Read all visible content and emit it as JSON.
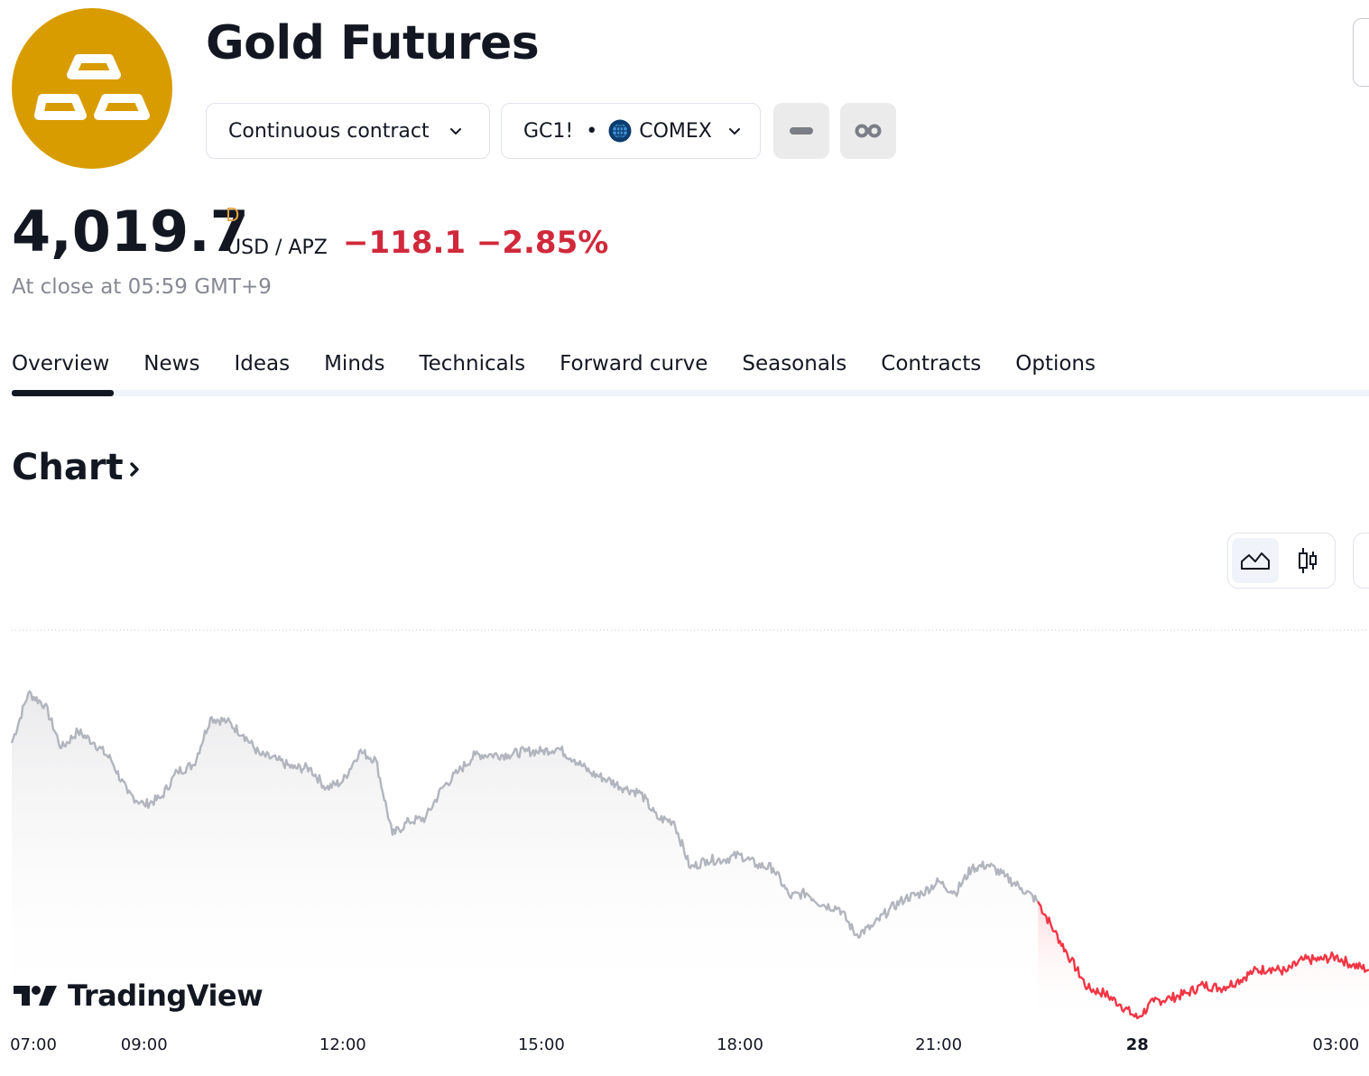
{
  "header": {
    "title": "Gold Futures",
    "logo_icon": "gold-bars-icon",
    "contract_label": "Continuous contract",
    "symbol": "GC1!",
    "separator": "•",
    "exchange": "COMEX",
    "exchange_icon": "globe-icon"
  },
  "quote": {
    "price": "4,019.7",
    "badge": "D",
    "unit": "USD / APZ",
    "change": "−118.1 −2.85%",
    "close_time": "At close at 05:59 GMT+9"
  },
  "tabs": [
    "Overview",
    "News",
    "Ideas",
    "Minds",
    "Technicals",
    "Forward curve",
    "Seasonals",
    "Contracts",
    "Options"
  ],
  "active_tab": "Overview",
  "section": {
    "title": "Chart"
  },
  "chart_controls": {
    "selected": "area",
    "options": [
      "area",
      "candles"
    ]
  },
  "branding": {
    "watermark": "TradingView"
  },
  "colors": {
    "accent_gold": "#d89c00",
    "negative": "#d0293b",
    "line_grey": "#b2b5be",
    "line_red": "#f23645"
  },
  "chart_data": {
    "type": "area",
    "x_tick_labels": [
      "07:00",
      "09:00",
      "12:00",
      "15:00",
      "18:00",
      "21:00",
      "28",
      "03:00"
    ],
    "x_ticks_hours": [
      7,
      9,
      12,
      15,
      18,
      21,
      24,
      27
    ],
    "x_range_hours": [
      7,
      27.5
    ],
    "session_break_hour": 22.5,
    "y_range": [
      3990,
      4200
    ],
    "series": [
      {
        "hours": [
          7.0,
          7.25,
          7.5,
          7.75,
          8.0,
          8.25,
          8.5,
          8.75,
          9.0,
          9.25,
          9.5,
          9.75,
          10.0,
          10.25,
          10.5,
          10.75,
          11.0,
          11.25,
          11.5,
          11.75,
          12.0,
          12.25,
          12.5,
          12.75,
          13.0,
          13.25,
          13.5,
          13.75,
          14.0,
          14.25,
          14.5,
          14.75,
          15.0,
          15.25,
          15.5,
          15.75,
          16.0,
          16.25,
          16.5,
          16.75,
          17.0,
          17.25,
          17.5,
          17.75,
          18.0,
          18.25,
          18.5,
          18.75,
          19.0,
          19.25,
          19.5,
          19.75,
          20.0,
          20.25,
          20.5,
          20.75,
          21.0,
          21.25,
          21.5,
          21.75,
          22.0,
          22.25,
          22.5
        ],
        "values": [
          4155,
          4185,
          4178,
          4152,
          4162,
          4155,
          4145,
          4125,
          4118,
          4122,
          4138,
          4142,
          4170,
          4168,
          4160,
          4148,
          4145,
          4140,
          4140,
          4128,
          4132,
          4150,
          4145,
          4100,
          4108,
          4110,
          4128,
          4138,
          4148,
          4148,
          4148,
          4150,
          4150,
          4152,
          4145,
          4137,
          4133,
          4128,
          4125,
          4110,
          4108,
          4080,
          4085,
          4085,
          4088,
          4082,
          4080,
          4063,
          4065,
          4058,
          4056,
          4040,
          4045,
          4055,
          4062,
          4065,
          4072,
          4065,
          4080,
          4082,
          4075,
          4068,
          4060
        ]
      },
      {
        "hours": [
          22.5,
          22.75,
          23.0,
          23.25,
          23.5,
          23.75,
          24.0,
          24.25,
          24.5,
          24.75,
          25.0,
          25.25,
          25.5,
          25.75,
          26.0,
          26.25,
          26.5,
          26.75,
          27.0,
          27.25,
          27.5
        ],
        "values": [
          4060,
          4042,
          4025,
          4008,
          4005,
          3998,
          3990,
          4000,
          4002,
          4005,
          4010,
          4008,
          4012,
          4018,
          4020,
          4018,
          4025,
          4025,
          4027,
          4022,
          4019
        ]
      }
    ]
  }
}
